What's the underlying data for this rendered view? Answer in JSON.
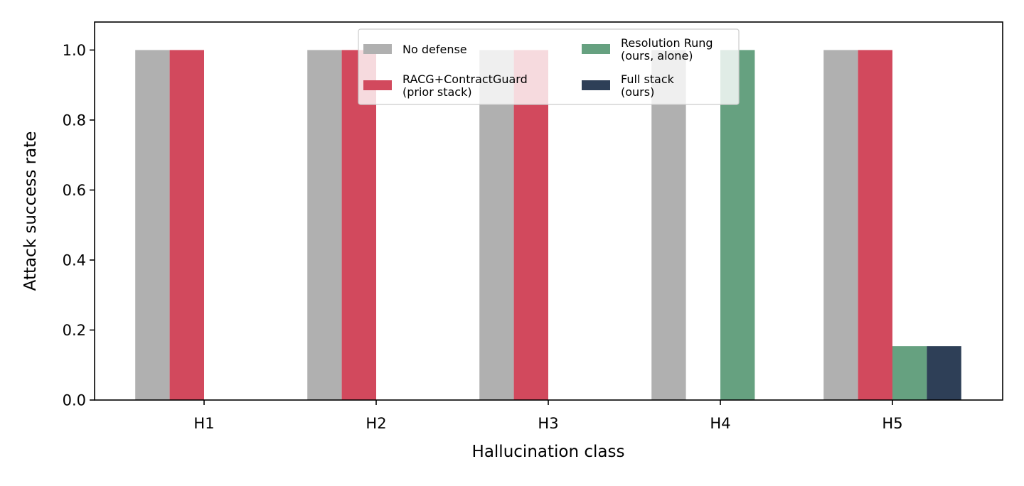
{
  "chart_data": {
    "type": "bar",
    "title": "",
    "xlabel": "Hallucination class",
    "ylabel": "Attack success rate",
    "categories": [
      "H1",
      "H2",
      "H3",
      "H4",
      "H5"
    ],
    "ylim": [
      0,
      1.08
    ],
    "yticks": [
      "0.0",
      "0.2",
      "0.4",
      "0.6",
      "0.8",
      "1.0"
    ],
    "grid": false,
    "legend_position": "top-center",
    "legend_columns": 2,
    "series": [
      {
        "name": "No defense",
        "color": "#b0b0b0",
        "values": [
          1.0,
          1.0,
          1.0,
          1.0,
          1.0
        ]
      },
      {
        "name": "RACG+ContractGuard\n(prior stack)",
        "color": "#d2495d",
        "values": [
          1.0,
          1.0,
          1.0,
          0.0,
          1.0
        ]
      },
      {
        "name": "Resolution Rung\n(ours, alone)",
        "color": "#66a180",
        "values": [
          0.0,
          0.0,
          0.0,
          1.0,
          0.154
        ]
      },
      {
        "name": "Full stack\n(ours)",
        "color": "#2e3f57",
        "values": [
          0.0,
          0.0,
          0.0,
          0.0,
          0.154
        ]
      }
    ]
  }
}
